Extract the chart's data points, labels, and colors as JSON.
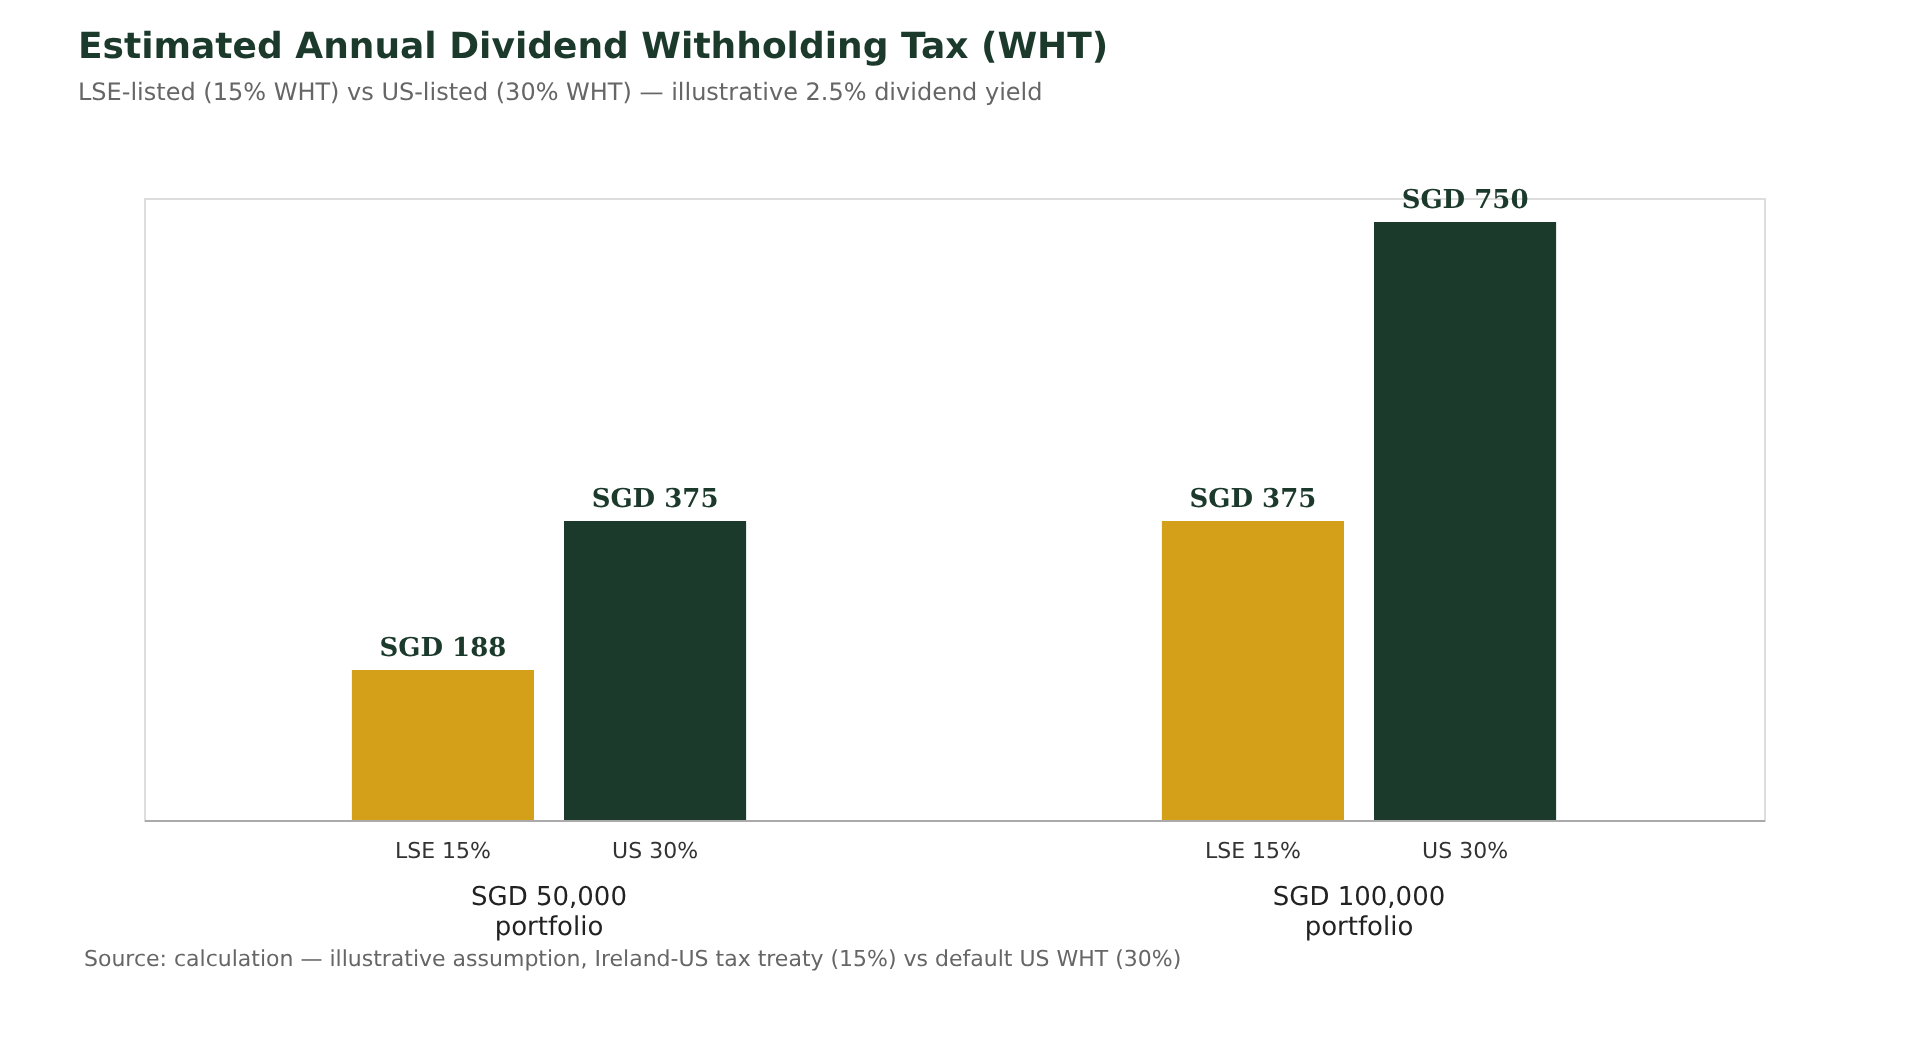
{
  "chart_data": {
    "type": "bar",
    "title": "Estimated Annual Dividend Withholding Tax (WHT)",
    "subtitle": "LSE-listed (15% WHT) vs US-listed (30% WHT) — illustrative 2.5% dividend yield",
    "categories": [
      "SGD 50,000\nportfolio",
      "SGD 100,000\nportfolio"
    ],
    "series": [
      {
        "name": "LSE 15%",
        "color": "#d4a01a",
        "values": [
          188,
          375
        ],
        "value_labels": [
          "SGD 188",
          "SGD 375"
        ]
      },
      {
        "name": "US 30%",
        "color": "#1b3a2b",
        "values": [
          375,
          750
        ],
        "value_labels": [
          "SGD 375",
          "SGD 750"
        ]
      }
    ],
    "annotations": [
      "Source: calculation — illustrative assumption, Ireland-US tax treaty (15%) vs default US WHT (30%)"
    ],
    "grid": false,
    "legend": false
  }
}
